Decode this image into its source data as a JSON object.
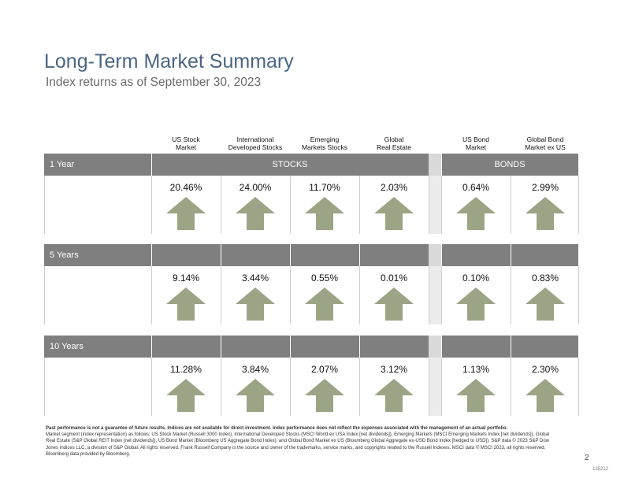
{
  "title": "Long-Term Market Summary",
  "subtitle": "Index returns as of September 30, 2023",
  "columns": [
    {
      "line1": "US Stock",
      "line2": "Market"
    },
    {
      "line1": "International",
      "line2": "Developed Stocks"
    },
    {
      "line1": "Emerging",
      "line2": "Markets Stocks"
    },
    {
      "line1": "Global",
      "line2": "Real Estate"
    },
    {
      "line1": "US Bond",
      "line2": "Market"
    },
    {
      "line1": "Global Bond",
      "line2": "Market ex US"
    }
  ],
  "groups": {
    "stocks": "STOCKS",
    "bonds": "BONDS"
  },
  "periods": [
    {
      "label": "1 Year",
      "values": [
        "20.46%",
        "24.00%",
        "11.70%",
        "2.03%",
        "0.64%",
        "2.99%"
      ]
    },
    {
      "label": "5 Years",
      "values": [
        "9.14%",
        "3.44%",
        "0.55%",
        "0.01%",
        "0.10%",
        "0.83%"
      ]
    },
    {
      "label": "10 Years",
      "values": [
        "11.28%",
        "3.84%",
        "2.07%",
        "3.12%",
        "1.13%",
        "2.30%"
      ]
    }
  ],
  "arrow": {
    "icon": "up-arrow-icon",
    "color": "#9ba586"
  },
  "colors": {
    "title": "#4a6584",
    "band": "#7f7f7f",
    "gap": "#d9d9d9"
  },
  "footnote": {
    "bold": "Past performance is not a guarantee of future results. Indices are not available for direct investment. Index performance does not reflect the expenses associated with the management of an actual portfolio.",
    "body": "Market segment (index representation) as follows: US Stock Market (Russell 3000 Index), International Developed Stocks (MSCI World ex USA Index [net dividends]), Emerging Markets (MSCI Emerging Markets Index [net dividends]), Global Real Estate (S&P Global REIT Index [net dividends]), US Bond Market (Bloomberg US Aggregate Bond Index), and Global Bond Market ex US (Bloomberg Global Aggregate ex-USD Bond Index [hedged to USD]). S&P data © 2023 S&P Dow Jones Indices LLC, a division of S&P Global. All rights reserved. Frank Russell Company is the source and owner of the trademarks, service marks, and copyrights related to the Russell Indexes. MSCI data © MSCI 2023, all rights reserved. Bloomberg data provided by Bloomberg."
  },
  "page_number": "2",
  "doc_code": "135212"
}
